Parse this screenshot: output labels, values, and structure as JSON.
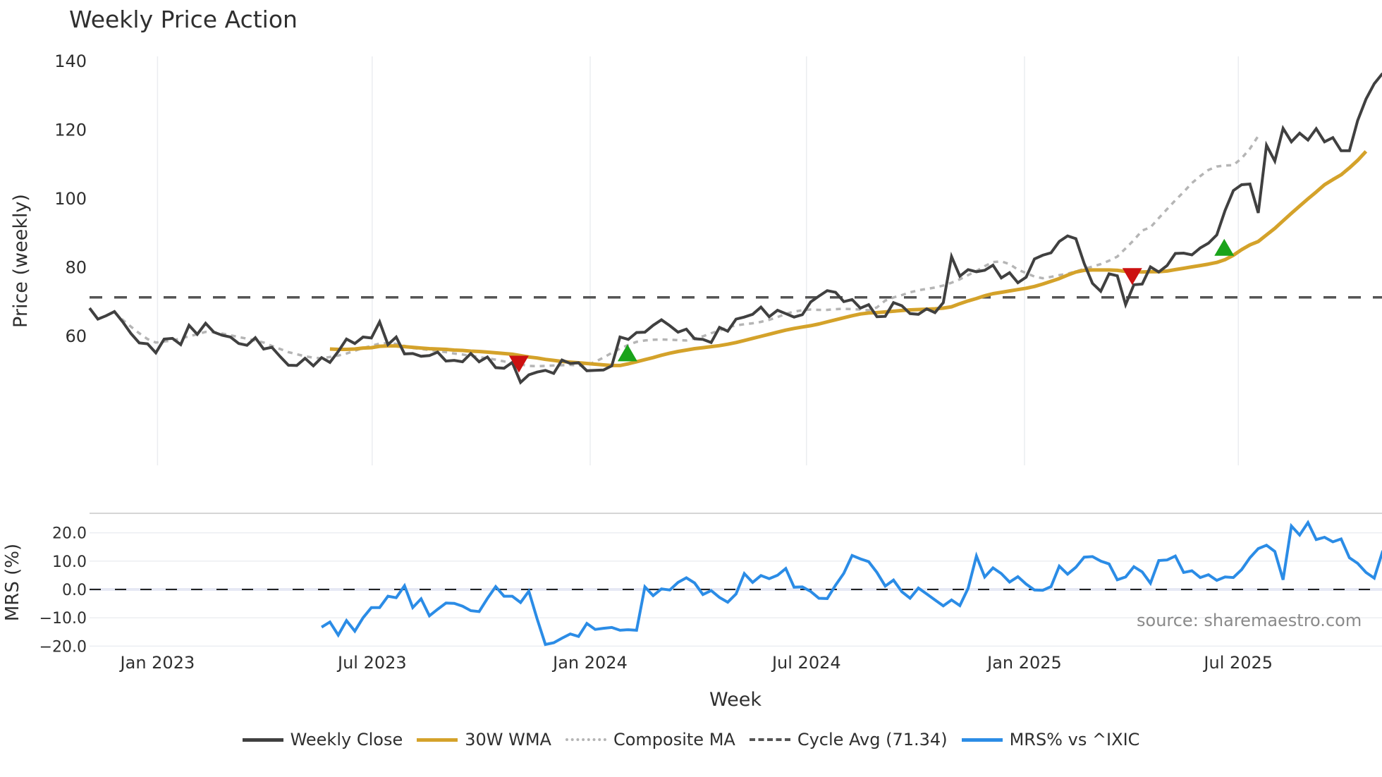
{
  "title": "Weekly Price Action",
  "source_note": "source: sharemaestro.com",
  "xlabel": "Week",
  "legend": [
    {
      "label": "Weekly Close",
      "color": "#404040",
      "style": "solid"
    },
    {
      "label": "30W WMA",
      "color": "#D4A22A",
      "style": "solid"
    },
    {
      "label": "Composite MA",
      "color": "#b5b5b5",
      "style": "dotted"
    },
    {
      "label": "Cycle Avg (71.34)",
      "color": "#555555",
      "style": "dashed"
    },
    {
      "label": "MRS% vs ^IXIC",
      "color": "#2b8ce6",
      "style": "solid"
    }
  ],
  "chart_data": [
    {
      "type": "line",
      "title": "Weekly Price Action",
      "xlabel": "Week",
      "ylabel": "Price (weekly)",
      "ylim": [
        41,
        142
      ],
      "yticks": [
        60,
        80,
        100,
        120,
        140
      ],
      "xticks": [
        "Jan 2023",
        "Jul 2023",
        "Jan 2024",
        "Jul 2024",
        "Jan 2025",
        "Jul 2025"
      ],
      "xtick_week_index": [
        8.2,
        34.1,
        60.4,
        86.5,
        112.8,
        138.6
      ],
      "grid": "vertical",
      "x_start": "Nov 2022",
      "x_step": "1 week",
      "series": [
        {
          "name": "Weekly Close",
          "color": "#404040",
          "values": [
            68.2,
            65.0,
            66.0,
            67.2,
            64.2,
            60.8,
            58.1,
            57.8,
            55.2,
            59.2,
            59.4,
            57.6,
            63.2,
            60.6,
            63.8,
            61.2,
            60.3,
            59.8,
            57.9,
            57.4,
            59.6,
            56.3,
            56.8,
            54.1,
            51.6,
            51.5,
            53.6,
            51.4,
            53.8,
            52.4,
            55.6,
            59.2,
            57.9,
            59.8,
            59.5,
            64.2,
            57.6,
            59.8,
            54.9,
            55.0,
            54.2,
            54.4,
            55.4,
            52.8,
            53.0,
            52.6,
            55.0,
            52.6,
            54.0,
            50.9,
            50.7,
            52.4,
            46.6,
            48.8,
            49.6,
            50.1,
            49.2,
            53.1,
            52.1,
            52.3,
            50.0,
            50.1,
            50.2,
            51.4,
            59.8,
            59.1,
            61.1,
            61.2,
            63.2,
            64.8,
            63.1,
            61.2,
            62.1,
            59.3,
            59.1,
            58.2,
            62.6,
            61.5,
            65.0,
            65.6,
            66.4,
            68.5,
            65.7,
            67.6,
            66.6,
            65.6,
            66.3,
            70.0,
            71.7,
            73.3,
            72.8,
            70.1,
            70.7,
            68.2,
            69.2,
            65.7,
            65.8,
            69.8,
            68.9,
            66.6,
            66.4,
            68.0,
            66.9,
            69.8,
            83.2,
            77.5,
            79.4,
            78.8,
            79.2,
            80.7,
            77.0,
            78.5,
            75.6,
            77.2,
            82.5,
            83.6,
            84.3,
            87.6,
            89.2,
            88.4,
            81.2,
            75.4,
            73.1,
            78.2,
            77.6,
            69.2,
            75.0,
            75.2,
            80.2,
            78.7,
            80.6,
            84.1,
            84.2,
            83.7,
            85.7,
            87.1,
            89.5,
            96.6,
            102.4,
            104.1,
            104.3,
            95.9,
            115.6,
            111.0,
            120.5,
            116.6,
            119.1,
            117.1,
            120.4,
            116.6,
            117.8,
            114.0,
            114.0,
            122.8,
            129.0,
            133.5,
            136.5
          ]
        },
        {
          "name": "30W WMA",
          "color": "#D4A22A",
          "start_index": 29,
          "values": [
            56.3,
            56.2,
            56.2,
            56.3,
            56.6,
            56.7,
            57.1,
            57.2,
            57.2,
            57.0,
            56.8,
            56.6,
            56.4,
            56.3,
            56.2,
            56.0,
            55.9,
            55.7,
            55.6,
            55.4,
            55.2,
            55.0,
            54.8,
            54.4,
            54.0,
            53.7,
            53.3,
            53.0,
            52.7,
            52.5,
            52.3,
            52.1,
            51.9,
            51.7,
            51.5,
            51.5,
            52.0,
            52.6,
            53.2,
            53.8,
            54.5,
            55.1,
            55.6,
            56.0,
            56.4,
            56.7,
            57.0,
            57.3,
            57.7,
            58.2,
            58.8,
            59.4,
            60.0,
            60.6,
            61.2,
            61.8,
            62.3,
            62.7,
            63.1,
            63.6,
            64.2,
            64.8,
            65.4,
            66.0,
            66.5,
            66.8,
            66.9,
            67.1,
            67.3,
            67.5,
            67.7,
            67.8,
            67.9,
            68.0,
            68.2,
            68.6,
            69.5,
            70.3,
            71.0,
            71.8,
            72.4,
            72.8,
            73.2,
            73.6,
            74.0,
            74.5,
            75.2,
            76.0,
            76.8,
            77.8,
            78.7,
            79.2,
            79.3,
            79.3,
            79.3,
            79.2,
            78.9,
            78.8,
            78.7,
            78.8,
            78.8,
            79.0,
            79.4,
            79.8,
            80.2,
            80.6,
            81.0,
            81.5,
            82.3,
            83.6,
            85.2,
            86.6,
            87.6,
            89.5,
            91.4,
            93.6,
            95.8,
            97.9,
            100.0,
            102.0,
            104.1,
            105.6,
            107.0,
            109.0,
            111.2,
            113.8
          ]
        },
        {
          "name": "Composite MA",
          "color": "#b5b5b5",
          "start_index": 3,
          "values": [
            67.0,
            64.8,
            62.8,
            60.9,
            59.2,
            58.2,
            58.5,
            58.8,
            59.4,
            60.0,
            60.6,
            61.3,
            61.2,
            60.8,
            60.3,
            59.8,
            59.3,
            58.8,
            58.2,
            57.2,
            56.3,
            55.4,
            54.8,
            54.2,
            53.8,
            53.6,
            54.0,
            54.4,
            55.0,
            55.8,
            56.6,
            57.2,
            57.9,
            58.0,
            57.8,
            57.2,
            56.6,
            56.3,
            56.0,
            55.7,
            55.4,
            55.0,
            54.7,
            54.3,
            54.0,
            53.6,
            53.2,
            52.7,
            52.2,
            51.8,
            51.4,
            51.3,
            51.4,
            51.5,
            51.6,
            51.7,
            51.5,
            51.6,
            52.6,
            53.8,
            55.2,
            56.4,
            57.5,
            58.4,
            58.8,
            59.0,
            59.1,
            59.0,
            58.9,
            58.8,
            59.4,
            60.0,
            60.9,
            61.7,
            62.6,
            63.2,
            63.5,
            63.8,
            64.2,
            64.8,
            65.6,
            66.5,
            67.2,
            67.6,
            67.8,
            67.7,
            67.7,
            67.9,
            68.0,
            67.9,
            67.8,
            67.6,
            68.4,
            70.4,
            71.3,
            72.0,
            72.8,
            73.4,
            73.8,
            74.2,
            74.8,
            75.6,
            76.6,
            77.8,
            79.0,
            80.4,
            81.6,
            81.8,
            81.0,
            79.4,
            78.4,
            77.4,
            76.9,
            77.3,
            77.8,
            78.2,
            78.9,
            79.6,
            80.3,
            81.0,
            82.0,
            83.2,
            85.6,
            88.0,
            90.8,
            91.7,
            94.4,
            97.0,
            99.6,
            102.0,
            104.6,
            106.6,
            108.4,
            109.4,
            109.7,
            109.8,
            111.8,
            114.6,
            118.3
          ]
        },
        {
          "name": "Cycle Avg (71.34)",
          "color": "#555555",
          "constant": 71.34
        }
      ],
      "markers": [
        {
          "type": "sell",
          "shape": "triangle-down",
          "color": "#cc1111",
          "week_index": 51.8,
          "value": 52.1
        },
        {
          "type": "buy",
          "shape": "triangle-up",
          "color": "#1aa31a",
          "week_index": 64.9,
          "value": 55.0
        },
        {
          "type": "sell",
          "shape": "triangle-down",
          "color": "#cc1111",
          "week_index": 125.8,
          "value": 77.6
        },
        {
          "type": "buy",
          "shape": "triangle-up",
          "color": "#1aa31a",
          "week_index": 136.9,
          "value": 85.7
        }
      ]
    },
    {
      "type": "line",
      "ylabel": "MRS (%)",
      "ylim": [
        -22,
        30
      ],
      "yticks": [
        "20.0",
        "10.0",
        "0.0",
        "−10.0",
        "−20.0"
      ],
      "ytick_values": [
        20,
        10,
        0,
        -10,
        -20
      ],
      "reference_line": 0,
      "series": [
        {
          "name": "MRS% vs ^IXIC",
          "color": "#2b8ce6",
          "start_index": 28,
          "values": [
            -13.3,
            -11.5,
            -16.1,
            -11.0,
            -14.7,
            -10.0,
            -6.4,
            -6.4,
            -2.4,
            -2.9,
            1.3,
            -6.4,
            -3.3,
            -9.3,
            -7.0,
            -4.8,
            -4.9,
            -5.9,
            -7.5,
            -7.8,
            -3.2,
            1.0,
            -2.4,
            -2.4,
            -4.6,
            -0.6,
            -10.4,
            -19.4,
            -18.8,
            -17.2,
            -15.7,
            -16.6,
            -12.0,
            -14.1,
            -13.7,
            -13.4,
            -14.4,
            -14.2,
            -14.4,
            0.9,
            -2.2,
            0.2,
            -0.2,
            2.5,
            4.1,
            2.3,
            -1.8,
            -0.4,
            -2.8,
            -4.5,
            -1.6,
            5.6,
            2.5,
            4.9,
            3.8,
            5.0,
            7.4,
            0.8,
            0.9,
            -0.7,
            -3.1,
            -3.2,
            1.5,
            5.7,
            12.0,
            10.8,
            9.8,
            6.0,
            1.2,
            3.3,
            -0.8,
            -3.1,
            0.5,
            -1.6,
            -3.7,
            -5.8,
            -3.7,
            -5.7,
            0.4,
            11.8,
            4.4,
            7.6,
            5.6,
            2.6,
            4.5,
            1.9,
            -0.2,
            -0.3,
            1.0,
            8.2,
            5.4,
            7.8,
            11.4,
            11.6,
            10.0,
            9.0,
            3.4,
            4.4,
            8.0,
            6.2,
            2.2,
            10.2,
            10.4,
            11.8,
            6.0,
            6.6,
            4.2,
            5.2,
            3.2,
            4.4,
            4.2,
            7.0,
            11.2,
            14.4,
            15.6,
            13.4,
            3.4,
            22.4,
            19.2,
            23.6,
            17.6,
            18.4,
            16.8,
            17.8,
            11.2,
            9.2,
            6.0,
            4.0,
            13.4,
            16.2,
            16.5,
            16.2
          ]
        }
      ]
    }
  ]
}
